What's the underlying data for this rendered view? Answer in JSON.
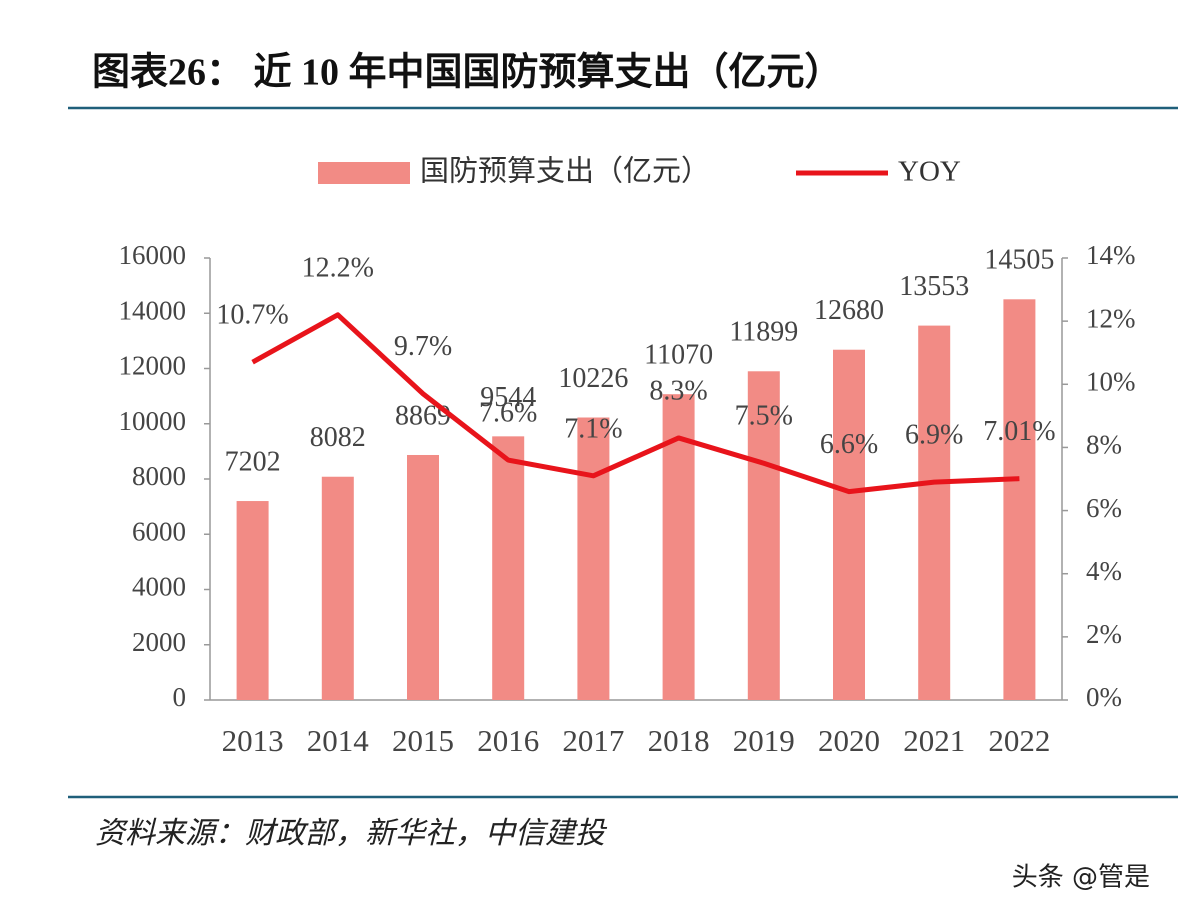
{
  "chart_data": {
    "type": "bar",
    "title": "图表26：  近 10 年中国国防预算支出（亿元）",
    "categories": [
      "2013",
      "2014",
      "2015",
      "2016",
      "2017",
      "2018",
      "2019",
      "2020",
      "2021",
      "2022"
    ],
    "series": [
      {
        "name": "国防预算支出（亿元）",
        "color": "#f28b85",
        "values": [
          7202,
          8082,
          8869,
          9544,
          10226,
          11070,
          11899,
          12680,
          13553,
          14505
        ]
      },
      {
        "name": "YOY",
        "color": "#e8141b",
        "type": "line",
        "axis": "y2",
        "values": [
          10.7,
          12.2,
          9.7,
          7.6,
          7.1,
          8.3,
          7.5,
          6.6,
          6.9,
          7.01
        ],
        "value_labels": [
          "10.7%",
          "12.2%",
          "9.7%",
          "7.6%",
          "7.1%",
          "8.3%",
          "7.5%",
          "6.6%",
          "6.9%",
          "7.01%"
        ]
      }
    ],
    "ylim": [
      0,
      16000
    ],
    "yticks": [
      0,
      2000,
      4000,
      6000,
      8000,
      10000,
      12000,
      14000,
      16000
    ],
    "y2lim": [
      0,
      14
    ],
    "y2ticks": [
      {
        "value": 0,
        "label": "0%"
      },
      {
        "value": 2,
        "label": "2%"
      },
      {
        "value": 4,
        "label": "4%"
      },
      {
        "value": 6,
        "label": "6%"
      },
      {
        "value": 8,
        "label": "8%"
      },
      {
        "value": 10,
        "label": "10%"
      },
      {
        "value": 12,
        "label": "12%"
      },
      {
        "value": 14,
        "label": "14%"
      }
    ]
  },
  "source": "资料来源：财政部，新华社，中信建投",
  "watermark": "头条 @管是"
}
